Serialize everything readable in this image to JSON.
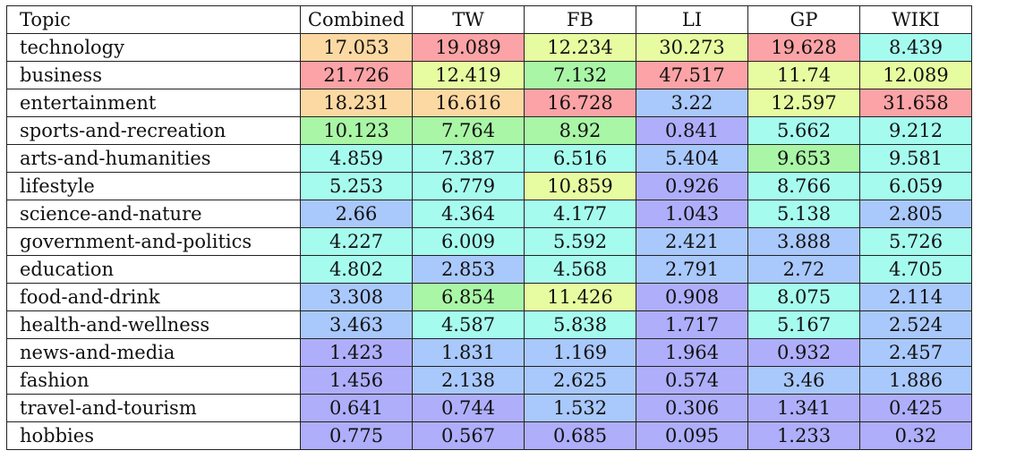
{
  "table": {
    "headers": [
      "Topic",
      "Combined",
      "TW",
      "FB",
      "LI",
      "GP",
      "WIKI"
    ],
    "colors": {
      "red": "#fba3a6",
      "orange": "#fcd9a2",
      "yellow": "#e7fca1",
      "green": "#a9f6a6",
      "cyan": "#a6fbef",
      "blue": "#a9c8fb",
      "violet": "#aeaefb"
    },
    "rows": [
      {
        "topic": "technology",
        "cells": [
          {
            "v": "17.053",
            "c": "orange"
          },
          {
            "v": "19.089",
            "c": "red"
          },
          {
            "v": "12.234",
            "c": "yellow"
          },
          {
            "v": "30.273",
            "c": "yellow"
          },
          {
            "v": "19.628",
            "c": "red"
          },
          {
            "v": "8.439",
            "c": "cyan"
          }
        ]
      },
      {
        "topic": "business",
        "cells": [
          {
            "v": "21.726",
            "c": "red"
          },
          {
            "v": "12.419",
            "c": "yellow"
          },
          {
            "v": "7.132",
            "c": "green"
          },
          {
            "v": "47.517",
            "c": "red"
          },
          {
            "v": "11.74",
            "c": "yellow"
          },
          {
            "v": "12.089",
            "c": "yellow"
          }
        ]
      },
      {
        "topic": "entertainment",
        "cells": [
          {
            "v": "18.231",
            "c": "orange"
          },
          {
            "v": "16.616",
            "c": "orange"
          },
          {
            "v": "16.728",
            "c": "red"
          },
          {
            "v": "3.22",
            "c": "blue"
          },
          {
            "v": "12.597",
            "c": "yellow"
          },
          {
            "v": "31.658",
            "c": "red"
          }
        ]
      },
      {
        "topic": "sports-and-recreation",
        "cells": [
          {
            "v": "10.123",
            "c": "green"
          },
          {
            "v": "7.764",
            "c": "green"
          },
          {
            "v": "8.92",
            "c": "green"
          },
          {
            "v": "0.841",
            "c": "violet"
          },
          {
            "v": "5.662",
            "c": "cyan"
          },
          {
            "v": "9.212",
            "c": "cyan"
          }
        ]
      },
      {
        "topic": "arts-and-humanities",
        "cells": [
          {
            "v": "4.859",
            "c": "cyan"
          },
          {
            "v": "7.387",
            "c": "cyan"
          },
          {
            "v": "6.516",
            "c": "cyan"
          },
          {
            "v": "5.404",
            "c": "blue"
          },
          {
            "v": "9.653",
            "c": "green"
          },
          {
            "v": "9.581",
            "c": "cyan"
          }
        ]
      },
      {
        "topic": "lifestyle",
        "cells": [
          {
            "v": "5.253",
            "c": "cyan"
          },
          {
            "v": "6.779",
            "c": "cyan"
          },
          {
            "v": "10.859",
            "c": "yellow"
          },
          {
            "v": "0.926",
            "c": "violet"
          },
          {
            "v": "8.766",
            "c": "cyan"
          },
          {
            "v": "6.059",
            "c": "cyan"
          }
        ]
      },
      {
        "topic": "science-and-nature",
        "cells": [
          {
            "v": "2.66",
            "c": "blue"
          },
          {
            "v": "4.364",
            "c": "cyan"
          },
          {
            "v": "4.177",
            "c": "cyan"
          },
          {
            "v": "1.043",
            "c": "violet"
          },
          {
            "v": "5.138",
            "c": "cyan"
          },
          {
            "v": "2.805",
            "c": "blue"
          }
        ]
      },
      {
        "topic": "government-and-politics",
        "cells": [
          {
            "v": "4.227",
            "c": "cyan"
          },
          {
            "v": "6.009",
            "c": "cyan"
          },
          {
            "v": "5.592",
            "c": "cyan"
          },
          {
            "v": "2.421",
            "c": "blue"
          },
          {
            "v": "3.888",
            "c": "blue"
          },
          {
            "v": "5.726",
            "c": "cyan"
          }
        ]
      },
      {
        "topic": "education",
        "cells": [
          {
            "v": "4.802",
            "c": "cyan"
          },
          {
            "v": "2.853",
            "c": "blue"
          },
          {
            "v": "4.568",
            "c": "cyan"
          },
          {
            "v": "2.791",
            "c": "blue"
          },
          {
            "v": "2.72",
            "c": "blue"
          },
          {
            "v": "4.705",
            "c": "cyan"
          }
        ]
      },
      {
        "topic": "food-and-drink",
        "cells": [
          {
            "v": "3.308",
            "c": "blue"
          },
          {
            "v": "6.854",
            "c": "green"
          },
          {
            "v": "11.426",
            "c": "yellow"
          },
          {
            "v": "0.908",
            "c": "violet"
          },
          {
            "v": "8.075",
            "c": "cyan"
          },
          {
            "v": "2.114",
            "c": "blue"
          }
        ]
      },
      {
        "topic": "health-and-wellness",
        "cells": [
          {
            "v": "3.463",
            "c": "blue"
          },
          {
            "v": "4.587",
            "c": "cyan"
          },
          {
            "v": "5.838",
            "c": "cyan"
          },
          {
            "v": "1.717",
            "c": "violet"
          },
          {
            "v": "5.167",
            "c": "cyan"
          },
          {
            "v": "2.524",
            "c": "blue"
          }
        ]
      },
      {
        "topic": "news-and-media",
        "cells": [
          {
            "v": "1.423",
            "c": "violet"
          },
          {
            "v": "1.831",
            "c": "blue"
          },
          {
            "v": "1.169",
            "c": "blue"
          },
          {
            "v": "1.964",
            "c": "violet"
          },
          {
            "v": "0.932",
            "c": "violet"
          },
          {
            "v": "2.457",
            "c": "blue"
          }
        ]
      },
      {
        "topic": "fashion",
        "cells": [
          {
            "v": "1.456",
            "c": "violet"
          },
          {
            "v": "2.138",
            "c": "blue"
          },
          {
            "v": "2.625",
            "c": "blue"
          },
          {
            "v": "0.574",
            "c": "violet"
          },
          {
            "v": "3.46",
            "c": "blue"
          },
          {
            "v": "1.886",
            "c": "blue"
          }
        ]
      },
      {
        "topic": "travel-and-tourism",
        "cells": [
          {
            "v": "0.641",
            "c": "violet"
          },
          {
            "v": "0.744",
            "c": "violet"
          },
          {
            "v": "1.532",
            "c": "blue"
          },
          {
            "v": "0.306",
            "c": "violet"
          },
          {
            "v": "1.341",
            "c": "violet"
          },
          {
            "v": "0.425",
            "c": "violet"
          }
        ]
      },
      {
        "topic": "hobbies",
        "cells": [
          {
            "v": "0.775",
            "c": "violet"
          },
          {
            "v": "0.567",
            "c": "violet"
          },
          {
            "v": "0.685",
            "c": "violet"
          },
          {
            "v": "0.095",
            "c": "violet"
          },
          {
            "v": "1.233",
            "c": "violet"
          },
          {
            "v": "0.32",
            "c": "violet"
          }
        ]
      }
    ]
  }
}
